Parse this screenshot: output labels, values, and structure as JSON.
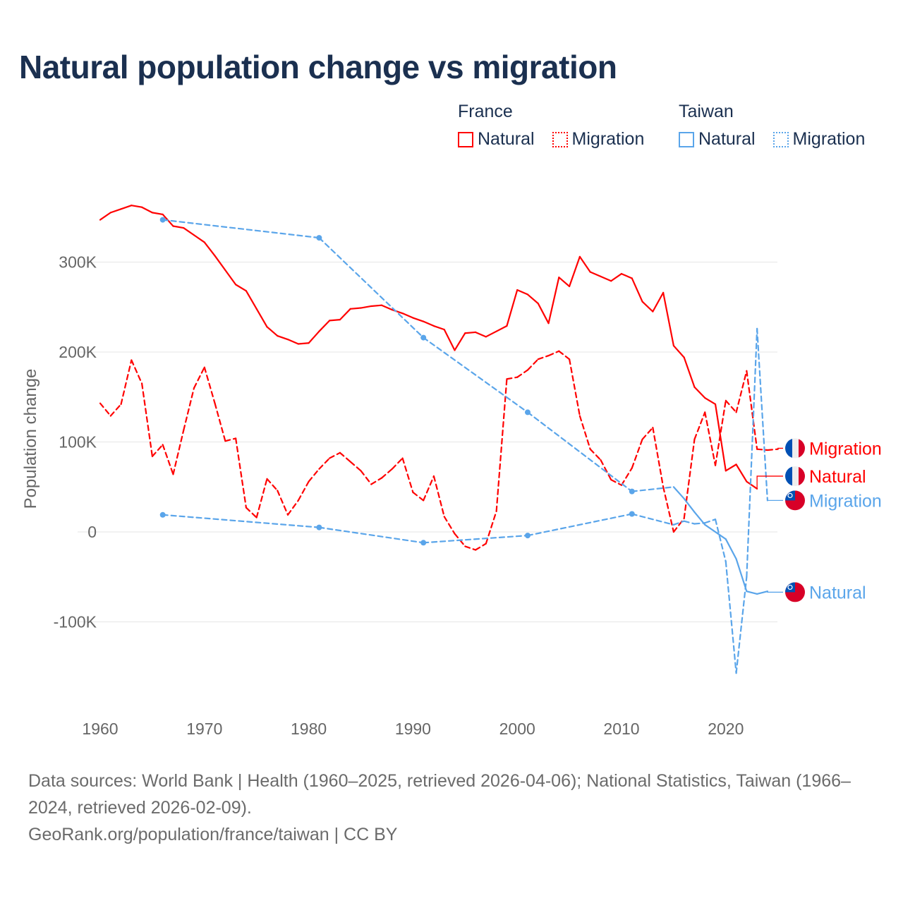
{
  "title": "Natural population change vs migration",
  "legend": {
    "groups": [
      {
        "name": "France",
        "items": [
          {
            "label": "Natural",
            "style": "solid"
          },
          {
            "label": "Migration",
            "style": "dotted"
          }
        ],
        "color": "#ff0000"
      },
      {
        "name": "Taiwan",
        "items": [
          {
            "label": "Natural",
            "style": "solid"
          },
          {
            "label": "Migration",
            "style": "dotted"
          }
        ],
        "color": "#5aa5ea"
      }
    ]
  },
  "footer": {
    "sources": "Data sources: World Bank | Health (1960–2025, retrieved 2026-04-06); National Statistics, Taiwan (1966–2024, retrieved 2026-02-09).",
    "credit": "GeoRank.org/population/france/taiwan | CC BY"
  },
  "chart_data": {
    "type": "line",
    "title": "Natural population change vs migration",
    "xlabel": "",
    "ylabel": "Population change",
    "xlim": [
      1960,
      2025
    ],
    "ylim": [
      -170,
      380
    ],
    "y_unit": "thousands",
    "grid": true,
    "legend_position": "top-right",
    "x_ticks": [
      1960,
      1970,
      1980,
      1990,
      2000,
      2010,
      2020
    ],
    "x_tick_labels": [
      "1960",
      "1970",
      "1980",
      "1990",
      "2000",
      "2010",
      "2020"
    ],
    "y_ticks": [
      300,
      200,
      100,
      0,
      -100
    ],
    "y_tick_labels": [
      "300K",
      "200K",
      "100K",
      "0",
      "-100K"
    ],
    "series": [
      {
        "name": "France Natural",
        "label": "Natural",
        "country": "France",
        "color": "#ff0000",
        "dashed": false,
        "x": [
          1960,
          1961,
          1962,
          1963,
          1964,
          1965,
          1966,
          1967,
          1968,
          1969,
          1970,
          1971,
          1972,
          1973,
          1974,
          1975,
          1976,
          1977,
          1978,
          1979,
          1980,
          1981,
          1982,
          1983,
          1984,
          1985,
          1986,
          1987,
          1988,
          1989,
          1990,
          1991,
          1992,
          1993,
          1994,
          1995,
          1996,
          1997,
          1998,
          1999,
          2000,
          2001,
          2002,
          2003,
          2004,
          2005,
          2006,
          2007,
          2008,
          2009,
          2010,
          2011,
          2012,
          2013,
          2014,
          2015,
          2016,
          2017,
          2018,
          2019,
          2020,
          2021,
          2022,
          2023
        ],
        "values": [
          347,
          355,
          359,
          363,
          361,
          355,
          353,
          340,
          338,
          330,
          322,
          307,
          291,
          275,
          268,
          248,
          228,
          218,
          214,
          209,
          210,
          223,
          235,
          236,
          248,
          249,
          251,
          252,
          247,
          243,
          238,
          234,
          229,
          225,
          202,
          221,
          222,
          217,
          223,
          229,
          269,
          264,
          254,
          232,
          283,
          273,
          306,
          289,
          284,
          279,
          287,
          282,
          256,
          245,
          266,
          207,
          194,
          161,
          149,
          142,
          68,
          75,
          56,
          48
        ]
      },
      {
        "name": "France Migration",
        "label": "Migration",
        "country": "France",
        "color": "#ff0000",
        "dashed": true,
        "x": [
          1960,
          1961,
          1962,
          1963,
          1964,
          1965,
          1966,
          1967,
          1968,
          1969,
          1970,
          1971,
          1972,
          1973,
          1974,
          1975,
          1976,
          1977,
          1978,
          1979,
          1980,
          1981,
          1982,
          1983,
          1984,
          1985,
          1986,
          1987,
          1988,
          1989,
          1990,
          1991,
          1992,
          1993,
          1994,
          1995,
          1996,
          1997,
          1998,
          1999,
          2000,
          2001,
          2002,
          2003,
          2004,
          2005,
          2006,
          2007,
          2008,
          2009,
          2010,
          2011,
          2012,
          2013,
          2014,
          2015,
          2016,
          2017,
          2018,
          2019,
          2020,
          2021,
          2022,
          2023,
          2024,
          2025
        ],
        "values": [
          143,
          129,
          142,
          191,
          165,
          84,
          97,
          64,
          113,
          160,
          183,
          143,
          101,
          104,
          27,
          16,
          59,
          46,
          19,
          35,
          56,
          70,
          82,
          88,
          78,
          68,
          53,
          60,
          70,
          82,
          44,
          35,
          62,
          17,
          -2,
          -16,
          -20,
          -13,
          23,
          170,
          172,
          180,
          192,
          196,
          201,
          192,
          129,
          92,
          80,
          58,
          52,
          71,
          103,
          116,
          50,
          0,
          15,
          103,
          133,
          74,
          146,
          133,
          179,
          92,
          91,
          92
        ]
      },
      {
        "name": "Taiwan Natural",
        "label": "Natural",
        "country": "Taiwan",
        "color": "#5aa5ea",
        "dashed": false,
        "x": [
          1966,
          1981,
          1991,
          2001,
          2011,
          2015,
          2016,
          2017,
          2018,
          2019,
          2020,
          2021,
          2022,
          2023,
          2024
        ],
        "values": [
          347,
          327,
          216,
          133,
          45,
          50,
          37,
          22,
          8,
          0,
          -8,
          -30,
          -66,
          -69,
          -66
        ]
      },
      {
        "name": "Taiwan Migration",
        "label": "Migration",
        "country": "Taiwan",
        "color": "#5aa5ea",
        "dashed": true,
        "x": [
          1966,
          1981,
          1991,
          2001,
          2011,
          2015,
          2016,
          2017,
          2018,
          2019,
          2020,
          2021,
          2022,
          2023,
          2024
        ],
        "values": [
          19,
          5,
          -12,
          -4,
          20,
          8,
          12,
          9,
          10,
          14,
          -33,
          -157,
          -50,
          226,
          35
        ]
      }
    ],
    "end_labels": [
      {
        "series": "France Migration",
        "text": "Migration",
        "flag": "france",
        "label_value": 93
      },
      {
        "series": "France Natural",
        "text": "Natural",
        "flag": "france",
        "label_value": 62
      },
      {
        "series": "Taiwan Migration",
        "text": "Migration",
        "flag": "taiwan",
        "label_value": 35
      },
      {
        "series": "Taiwan Natural",
        "text": "Natural",
        "flag": "taiwan",
        "label_value": -67
      }
    ]
  }
}
